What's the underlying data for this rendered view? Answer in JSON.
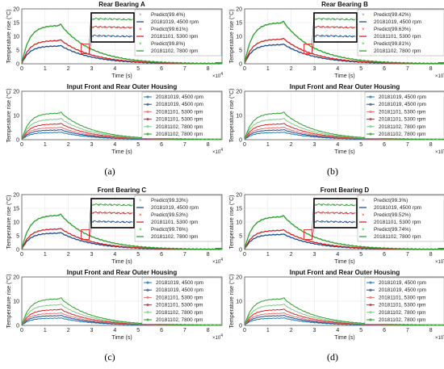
{
  "panels": [
    {
      "label": "(a)",
      "top_chart": {
        "type": "line",
        "title": "Rear Bearing A",
        "xlabel": "Time (s)",
        "ylabel": "Temperature rise (°C)",
        "xlim": [
          0,
          8.6
        ],
        "ylim": [
          0,
          20
        ],
        "x_ticks": [
          "0",
          "1",
          "2",
          "3",
          "4",
          "5",
          "6",
          "7",
          "8"
        ],
        "y_ticks": [
          "0",
          "5",
          "10",
          "15",
          "20"
        ],
        "x_exponent": "×10",
        "x_exponent_power": "4",
        "grid": true,
        "legend_position": "top-right",
        "legend": [
          "Predict(99.4%)",
          "20181019, 4500 rpm",
          "Predict(99.61%)",
          "20181101, 5300 rpm",
          "Predict(99.8%)",
          "20181102, 7800 rpm"
        ],
        "series": [
          {
            "name": "20181019, 4500 rpm",
            "color": "#1f4e8c",
            "plateau": 6.5
          },
          {
            "name": "20181101, 5300 rpm",
            "color": "#d62728",
            "plateau": 8.5
          },
          {
            "name": "20181102, 7800 rpm",
            "color": "#2ca02c",
            "plateau": 14
          }
        ]
      },
      "bottom_chart": {
        "type": "line",
        "title": "Input Front and Rear Outer Housing",
        "xlabel": "Time (s)",
        "ylabel": "Temperature rise (°C)",
        "xlim": [
          0,
          8.6
        ],
        "ylim": [
          0,
          20
        ],
        "x_ticks": [
          "0",
          "1",
          "2",
          "3",
          "4",
          "5",
          "6",
          "7",
          "8"
        ],
        "y_ticks": [
          "0",
          "10",
          "20"
        ],
        "x_exponent": "×10",
        "x_exponent_power": "4",
        "legend": [
          "20181019, 4500 rpm",
          "20181019, 4500 rpm",
          "20181101, 5300 rpm",
          "20181101, 5300 rpm",
          "20181102, 7800 rpm",
          "20181102, 7800 rpm"
        ]
      }
    },
    {
      "label": "(b)",
      "top_chart": {
        "type": "line",
        "title": "Rear Bearing B",
        "xlabel": "Time (s)",
        "ylabel": "Temperature rise (°C)",
        "xlim": [
          0,
          8.6
        ],
        "ylim": [
          0,
          20
        ],
        "x_ticks": [
          "0",
          "1",
          "2",
          "3",
          "4",
          "5",
          "6",
          "7",
          "8"
        ],
        "y_ticks": [
          "0",
          "5",
          "10",
          "15",
          "20"
        ],
        "x_exponent": "×10",
        "x_exponent_power": "4",
        "grid": true,
        "legend_position": "top-right",
        "legend": [
          "Predict(99.42%)",
          "20181019, 4500 rpm",
          "Predict(99.63%)",
          "20181101, 5300 rpm",
          "Predict(99.81%)",
          "20181102, 7800 rpm"
        ],
        "series": [
          {
            "name": "20181019, 4500 rpm",
            "color": "#1f4e8c",
            "plateau": 7
          },
          {
            "name": "20181101, 5300 rpm",
            "color": "#d62728",
            "plateau": 9
          },
          {
            "name": "20181102, 7800 rpm",
            "color": "#2ca02c",
            "plateau": 15
          }
        ]
      },
      "bottom_chart": {
        "type": "line",
        "title": "Input Front and Rear Outer Housing",
        "xlabel": "Time (s)",
        "ylabel": "Temperature rise (°C)",
        "xlim": [
          0,
          8.6
        ],
        "ylim": [
          0,
          20
        ],
        "x_ticks": [
          "0",
          "1",
          "2",
          "3",
          "4",
          "5",
          "6",
          "7",
          "8"
        ],
        "y_ticks": [
          "0",
          "10",
          "20"
        ],
        "x_exponent": "×10",
        "x_exponent_power": "4",
        "legend": [
          "20181019, 4500 rpm",
          "20181019, 4500 rpm",
          "20181101, 5300 rpm",
          "20181101, 5300 rpm",
          "20181102, 7800 rpm",
          "20181102, 7800 rpm"
        ]
      }
    },
    {
      "label": "(c)",
      "top_chart": {
        "type": "line",
        "title": "Front Bearing C",
        "xlabel": "Time (s)",
        "ylabel": "Temperature rise (°C)",
        "xlim": [
          0,
          8.6
        ],
        "ylim": [
          0,
          20
        ],
        "x_ticks": [
          "0",
          "1",
          "2",
          "3",
          "4",
          "5",
          "6",
          "7",
          "8"
        ],
        "y_ticks": [
          "0",
          "5",
          "10",
          "15",
          "20"
        ],
        "x_exponent": "×10",
        "x_exponent_power": "4",
        "grid": true,
        "legend_position": "top-right",
        "legend": [
          "Predict(99.33%)",
          "20181019, 4500 rpm",
          "Predict(99.53%)",
          "20181101, 5300 rpm",
          "Predict(99.76%)",
          "20181102, 7800 rpm"
        ],
        "series": [
          {
            "name": "20181019, 4500 rpm",
            "color": "#1f4e8c",
            "plateau": 6
          },
          {
            "name": "20181101, 5300 rpm",
            "color": "#d62728",
            "plateau": 7.5
          },
          {
            "name": "20181102, 7800 rpm",
            "color": "#2ca02c",
            "plateau": 12.5
          }
        ]
      },
      "bottom_chart": {
        "type": "line",
        "title": "Input Front and Rear Outer Housing",
        "xlabel": "Time (s)",
        "ylabel": "Temperature rise (°C)",
        "xlim": [
          0,
          8.6
        ],
        "ylim": [
          0,
          20
        ],
        "x_ticks": [
          "0",
          "1",
          "2",
          "3",
          "4",
          "5",
          "6",
          "7",
          "8"
        ],
        "y_ticks": [
          "0",
          "10",
          "20"
        ],
        "x_exponent": "×10",
        "x_exponent_power": "4",
        "legend": [
          "20181019, 4500 rpm",
          "20181019, 4500 rpm",
          "20181101, 5300 rpm",
          "20181101, 5300 rpm",
          "20181102, 7800 rpm",
          "20181102, 7800 rpm"
        ]
      }
    },
    {
      "label": "(d)",
      "top_chart": {
        "type": "line",
        "title": "Front Bearing D",
        "xlabel": "Time (s)",
        "ylabel": "Temperature rise (°C)",
        "xlim": [
          0,
          8.6
        ],
        "ylim": [
          0,
          20
        ],
        "x_ticks": [
          "0",
          "1",
          "2",
          "3",
          "4",
          "5",
          "6",
          "7",
          "8"
        ],
        "y_ticks": [
          "0",
          "5",
          "10",
          "15",
          "20"
        ],
        "x_exponent": "×10",
        "x_exponent_power": "4",
        "grid": true,
        "legend_position": "top-right",
        "legend": [
          "Predict(99.3%)",
          "20181019, 4500 rpm",
          "Predict(99.52%)",
          "20181101, 5300 rpm",
          "Predict(99.74%)",
          "20181102, 7800 rpm"
        ],
        "series": [
          {
            "name": "20181019, 4500 rpm",
            "color": "#1f4e8c",
            "plateau": 5.5
          },
          {
            "name": "20181101, 5300 rpm",
            "color": "#d62728",
            "plateau": 7
          },
          {
            "name": "20181102, 7800 rpm",
            "color": "#2ca02c",
            "plateau": 12
          }
        ]
      },
      "bottom_chart": {
        "type": "line",
        "title": "Input Front and Rear Outer Housing",
        "xlabel": "Time (s)",
        "ylabel": "Temperature rise (°C)",
        "xlim": [
          0,
          8.6
        ],
        "ylim": [
          0,
          20
        ],
        "x_ticks": [
          "0",
          "1",
          "2",
          "3",
          "4",
          "5",
          "6",
          "7",
          "8"
        ],
        "y_ticks": [
          "0",
          "10",
          "20"
        ],
        "x_exponent": "×10",
        "x_exponent_power": "4",
        "legend": [
          "20181019, 4500 rpm",
          "20181019, 4500 rpm",
          "20181101, 5300 rpm",
          "20181101, 5300 rpm",
          "20181102, 7800 rpm",
          "20181102, 7800 rpm"
        ]
      }
    }
  ],
  "housing_series": [
    {
      "color": "#1f77b4",
      "plateau": 3
    },
    {
      "color": "#1f4e8c",
      "plateau": 4
    },
    {
      "color": "#e57373",
      "plateau": 5
    },
    {
      "color": "#d62728",
      "plateau": 6.5
    },
    {
      "color": "#81c784",
      "plateau": 8.5
    },
    {
      "color": "#2ca02c",
      "plateau": 11
    }
  ],
  "legend_colors": [
    "#888888",
    "#1f4e8c",
    "#d62728",
    "#d62728",
    "#2ca02c",
    "#2ca02c"
  ],
  "chart_data": [
    {
      "type": "line",
      "title": "Rear Bearing A",
      "xlabel": "Time (s)",
      "ylabel": "Temperature rise (°C)",
      "x_scale_note": "×10^4",
      "xlim": [
        0,
        8.6
      ],
      "ylim": [
        0,
        20
      ],
      "x": [
        0,
        0.2,
        0.5,
        1.0,
        1.5,
        1.7,
        2.0,
        3.0,
        4.0,
        5.0,
        6.0,
        7.0,
        8.0
      ],
      "series": [
        {
          "name": "20181019, 4500 rpm",
          "values": [
            0,
            3.5,
            5.6,
            6.3,
            6.5,
            6.5,
            5.2,
            3.2,
            2.0,
            1.2,
            0.8,
            0.5,
            0.3
          ]
        },
        {
          "name": "20181101, 5300 rpm",
          "values": [
            0,
            4.6,
            7.3,
            8.2,
            8.5,
            8.5,
            6.8,
            4.2,
            2.6,
            1.6,
            1.0,
            0.6,
            0.4
          ]
        },
        {
          "name": "20181102, 7800 rpm",
          "values": [
            0,
            7.6,
            12.0,
            13.6,
            14.0,
            14.0,
            11.2,
            6.9,
            4.3,
            2.7,
            1.7,
            1.0,
            0.6
          ]
        }
      ]
    },
    {
      "type": "line",
      "title": "Rear Bearing B",
      "xlabel": "Time (s)",
      "ylabel": "Temperature rise (°C)",
      "x_scale_note": "×10^4",
      "xlim": [
        0,
        8.6
      ],
      "ylim": [
        0,
        20
      ],
      "x": [
        0,
        0.2,
        0.5,
        1.0,
        1.5,
        1.7,
        2.0,
        3.0,
        4.0,
        5.0,
        6.0,
        7.0,
        8.0
      ],
      "series": [
        {
          "name": "20181019, 4500 rpm",
          "values": [
            0,
            3.8,
            6.0,
            6.8,
            7.0,
            7.0,
            5.6,
            3.5,
            2.2,
            1.3,
            0.8,
            0.5,
            0.3
          ]
        },
        {
          "name": "20181101, 5300 rpm",
          "values": [
            0,
            4.9,
            7.7,
            8.7,
            9.0,
            9.0,
            7.2,
            4.4,
            2.8,
            1.7,
            1.1,
            0.7,
            0.4
          ]
        },
        {
          "name": "20181102, 7800 rpm",
          "values": [
            0,
            8.1,
            12.9,
            14.6,
            15.0,
            15.0,
            12.0,
            7.4,
            4.6,
            2.9,
            1.8,
            1.1,
            0.7
          ]
        }
      ]
    },
    {
      "type": "line",
      "title": "Front Bearing C",
      "xlabel": "Time (s)",
      "ylabel": "Temperature rise (°C)",
      "x_scale_note": "×10^4",
      "xlim": [
        0,
        8.6
      ],
      "ylim": [
        0,
        20
      ],
      "x": [
        0,
        0.2,
        0.5,
        1.0,
        1.5,
        1.7,
        2.0,
        3.0,
        4.0,
        5.0,
        6.0,
        7.0,
        8.0
      ],
      "series": [
        {
          "name": "20181019, 4500 rpm",
          "values": [
            0,
            3.3,
            5.2,
            5.8,
            6.0,
            6.0,
            4.8,
            3.0,
            1.8,
            1.1,
            0.7,
            0.4,
            0.3
          ]
        },
        {
          "name": "20181101, 5300 rpm",
          "values": [
            0,
            4.1,
            6.4,
            7.3,
            7.5,
            7.5,
            6.0,
            3.7,
            2.3,
            1.4,
            0.9,
            0.6,
            0.3
          ]
        },
        {
          "name": "20181102, 7800 rpm",
          "values": [
            0,
            6.8,
            10.7,
            12.2,
            12.5,
            12.5,
            10.0,
            6.2,
            3.8,
            2.4,
            1.5,
            0.9,
            0.6
          ]
        }
      ]
    },
    {
      "type": "line",
      "title": "Front Bearing D",
      "xlabel": "Time (s)",
      "ylabel": "Temperature rise (°C)",
      "x_scale_note": "×10^4",
      "xlim": [
        0,
        8.6
      ],
      "ylim": [
        0,
        20
      ],
      "x": [
        0,
        0.2,
        0.5,
        1.0,
        1.5,
        1.7,
        2.0,
        3.0,
        4.0,
        5.0,
        6.0,
        7.0,
        8.0
      ],
      "series": [
        {
          "name": "20181019, 4500 rpm",
          "values": [
            0,
            3.0,
            4.7,
            5.4,
            5.5,
            5.5,
            4.4,
            2.7,
            1.7,
            1.0,
            0.7,
            0.4,
            0.2
          ]
        },
        {
          "name": "20181101, 5300 rpm",
          "values": [
            0,
            3.8,
            6.0,
            6.8,
            7.0,
            7.0,
            5.6,
            3.5,
            2.2,
            1.3,
            0.8,
            0.5,
            0.3
          ]
        },
        {
          "name": "20181102, 7800 rpm",
          "values": [
            0,
            6.5,
            10.3,
            11.7,
            12.0,
            12.0,
            9.6,
            5.9,
            3.7,
            2.3,
            1.4,
            0.9,
            0.5
          ]
        }
      ]
    }
  ]
}
